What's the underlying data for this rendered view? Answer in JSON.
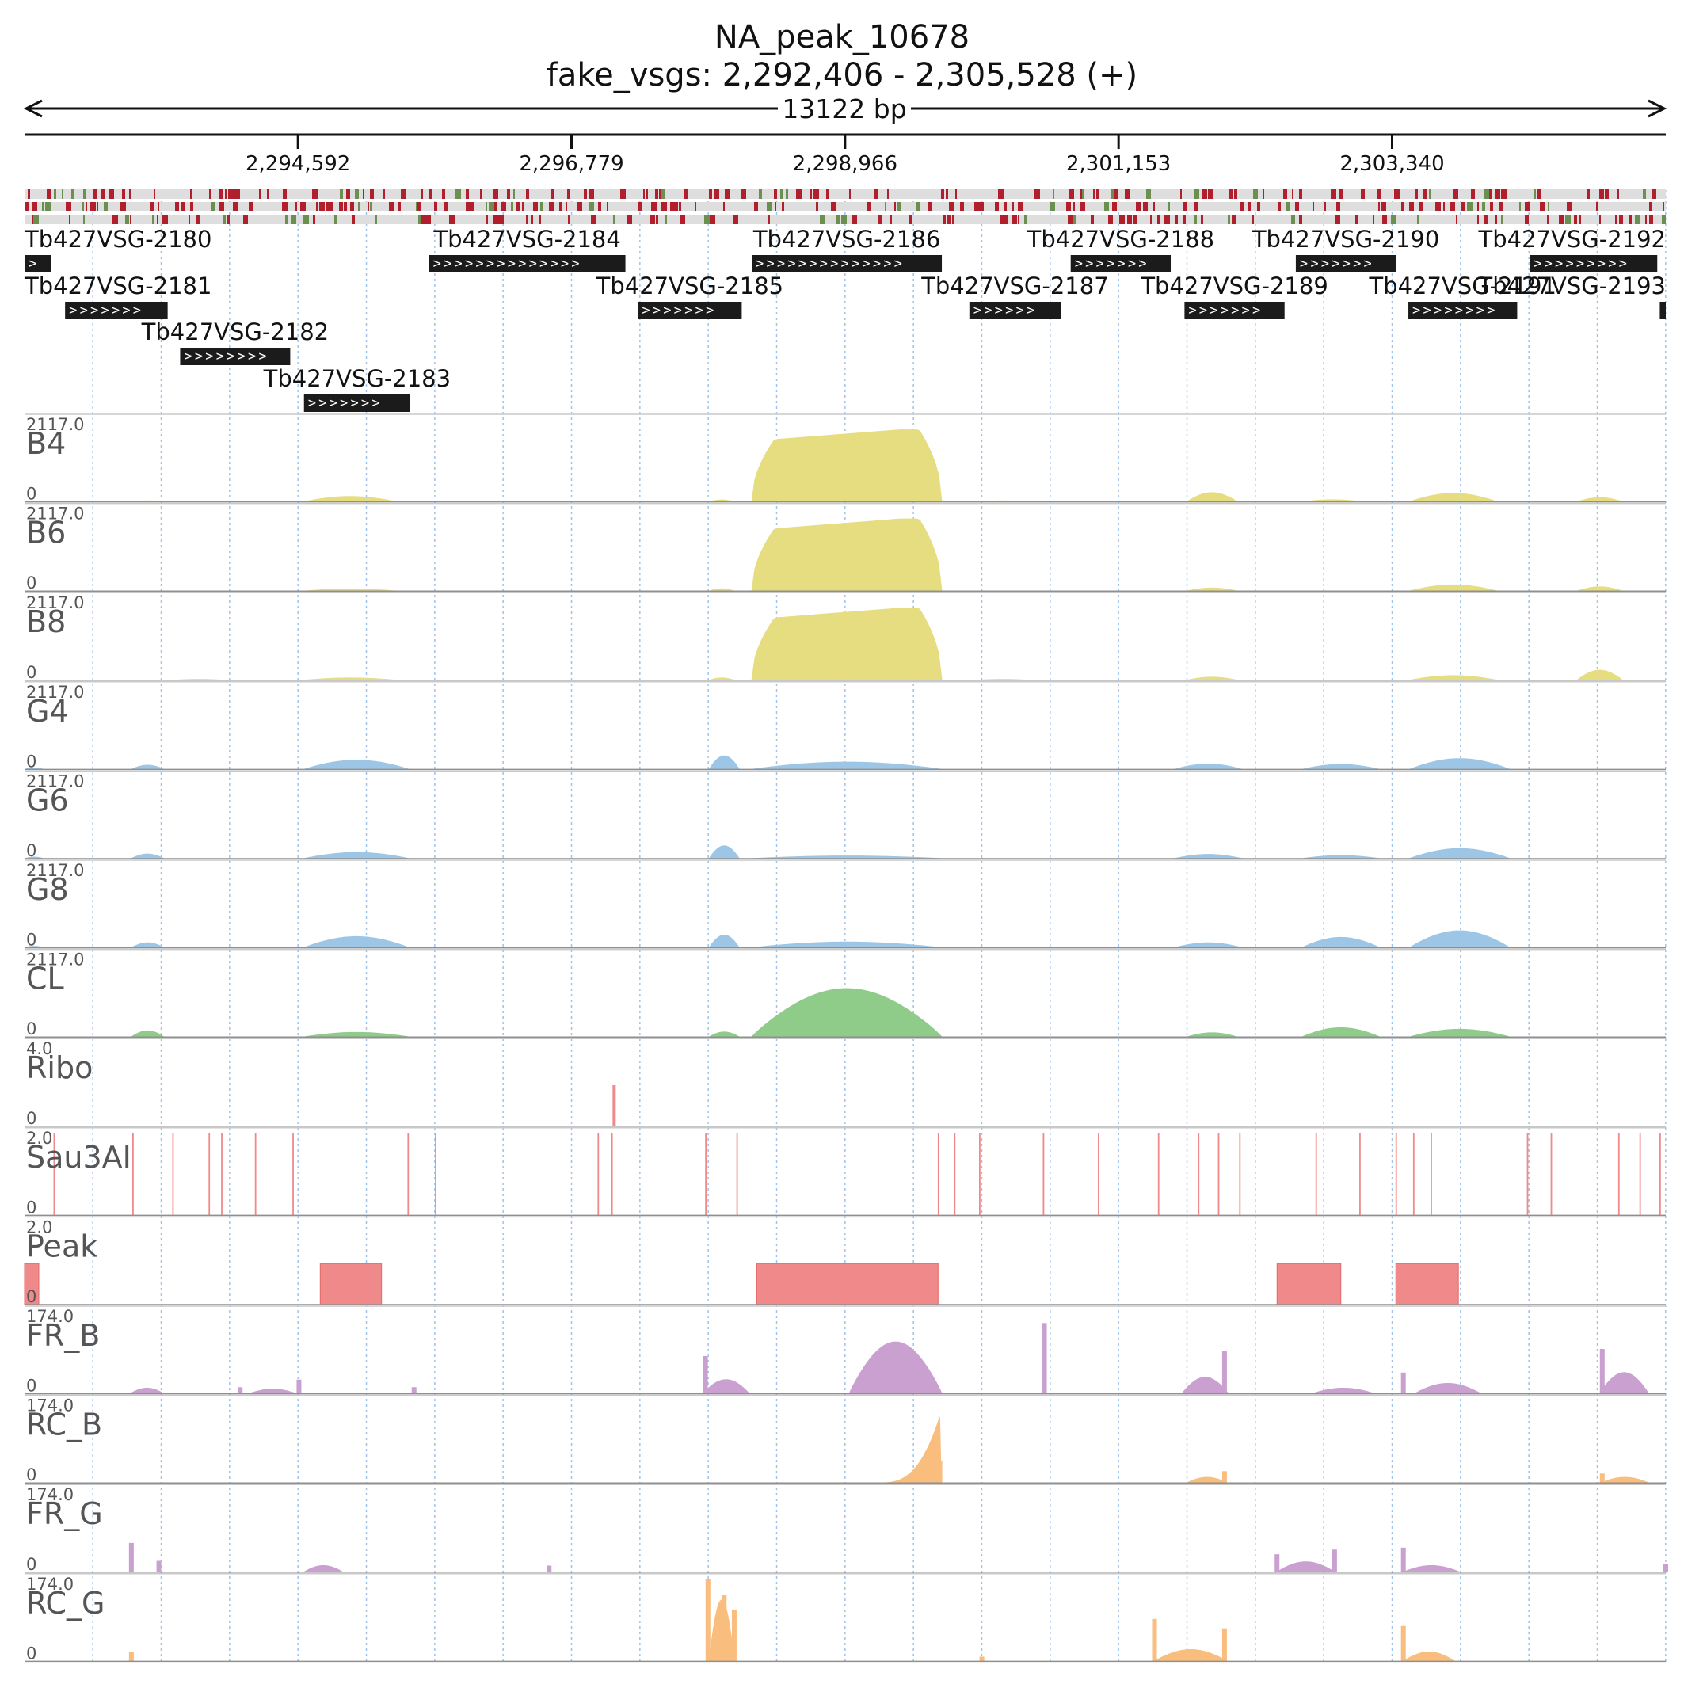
{
  "chart_data": {
    "type": "area",
    "title": "NA_peak_10678",
    "subtitle": "fake_vsgs: 2,292,406 - 2,305,528 (+)",
    "span_label": "13122 bp",
    "region": {
      "chrom": "fake_vsgs",
      "start": 2292406,
      "end": 2305528,
      "strand": "+"
    },
    "x_ticks": [
      {
        "value": 2294592,
        "label": "2,294,592"
      },
      {
        "value": 2296779,
        "label": "2,296,779"
      },
      {
        "value": 2298966,
        "label": "2,298,966"
      },
      {
        "value": 2301153,
        "label": "2,301,153"
      },
      {
        "value": 2303340,
        "label": "2,303,340"
      }
    ],
    "genes": [
      {
        "name": "Tb427VSG-2180",
        "start": 2292406,
        "end": 2292620,
        "row": 0
      },
      {
        "name": "Tb427VSG-2181",
        "start": 2292730,
        "end": 2293550,
        "row": 1
      },
      {
        "name": "Tb427VSG-2182",
        "start": 2293650,
        "end": 2294530,
        "row": 2
      },
      {
        "name": "Tb427VSG-2183",
        "start": 2294640,
        "end": 2295490,
        "row": 3
      },
      {
        "name": "Tb427VSG-2184",
        "start": 2295640,
        "end": 2297210,
        "row": 0
      },
      {
        "name": "Tb427VSG-2185",
        "start": 2297310,
        "end": 2298140,
        "row": 1
      },
      {
        "name": "Tb427VSG-2186",
        "start": 2298220,
        "end": 2299740,
        "row": 0
      },
      {
        "name": "Tb427VSG-2187",
        "start": 2299960,
        "end": 2300690,
        "row": 1
      },
      {
        "name": "Tb427VSG-2188",
        "start": 2300770,
        "end": 2301570,
        "row": 0
      },
      {
        "name": "Tb427VSG-2189",
        "start": 2301680,
        "end": 2302480,
        "row": 1
      },
      {
        "name": "Tb427VSG-2190",
        "start": 2302570,
        "end": 2303370,
        "row": 0
      },
      {
        "name": "Tb427VSG-2191",
        "start": 2303470,
        "end": 2304340,
        "row": 1
      },
      {
        "name": "Tb427VSG-2192",
        "start": 2304440,
        "end": 2305460,
        "row": 0
      },
      {
        "name": "Tb427VSG-2193",
        "start": 2305480,
        "end": 2305528,
        "row": 1
      }
    ],
    "tracks": [
      {
        "name": "B4",
        "max": 2117.0,
        "max_label": "2117.0",
        "min_label": "0",
        "color": "#e5dd7f",
        "segments": [
          {
            "start": 2293280,
            "end": 2293520,
            "peak": 25,
            "shape": "hump"
          },
          {
            "start": 2294640,
            "end": 2295380,
            "peak": 140,
            "shape": "hump"
          },
          {
            "start": 2297880,
            "end": 2298080,
            "peak": 50,
            "shape": "hump"
          },
          {
            "start": 2298220,
            "end": 2299740,
            "peak": 1860,
            "shape": "plateau",
            "base": 1560
          },
          {
            "start": 2300020,
            "end": 2300440,
            "peak": 25,
            "shape": "hump"
          },
          {
            "start": 2301700,
            "end": 2302100,
            "peak": 240,
            "shape": "hump"
          },
          {
            "start": 2302630,
            "end": 2303100,
            "peak": 55,
            "shape": "hump"
          },
          {
            "start": 2303480,
            "end": 2304180,
            "peak": 220,
            "shape": "hump"
          },
          {
            "start": 2304820,
            "end": 2305180,
            "peak": 110,
            "shape": "hump"
          }
        ]
      },
      {
        "name": "B6",
        "max": 2117.0,
        "max_label": "2117.0",
        "min_label": "0",
        "color": "#e5dd7f",
        "segments": [
          {
            "start": 2294640,
            "end": 2295380,
            "peak": 55,
            "shape": "hump"
          },
          {
            "start": 2297880,
            "end": 2298080,
            "peak": 60,
            "shape": "hump"
          },
          {
            "start": 2298220,
            "end": 2299740,
            "peak": 1860,
            "shape": "plateau",
            "base": 1560
          },
          {
            "start": 2301700,
            "end": 2302100,
            "peak": 80,
            "shape": "hump"
          },
          {
            "start": 2303480,
            "end": 2304180,
            "peak": 160,
            "shape": "hump"
          },
          {
            "start": 2304820,
            "end": 2305180,
            "peak": 110,
            "shape": "hump"
          }
        ]
      },
      {
        "name": "B8",
        "max": 2117.0,
        "max_label": "2117.0",
        "min_label": "0",
        "color": "#e5dd7f",
        "segments": [
          {
            "start": 2293600,
            "end": 2294000,
            "peak": 25,
            "shape": "hump"
          },
          {
            "start": 2294640,
            "end": 2295380,
            "peak": 60,
            "shape": "hump"
          },
          {
            "start": 2297880,
            "end": 2298080,
            "peak": 60,
            "shape": "hump"
          },
          {
            "start": 2298220,
            "end": 2299740,
            "peak": 1860,
            "shape": "plateau",
            "base": 1560
          },
          {
            "start": 2300020,
            "end": 2300440,
            "peak": 25,
            "shape": "hump"
          },
          {
            "start": 2301700,
            "end": 2302100,
            "peak": 80,
            "shape": "hump"
          },
          {
            "start": 2303480,
            "end": 2304180,
            "peak": 120,
            "shape": "hump"
          },
          {
            "start": 2304820,
            "end": 2305180,
            "peak": 260,
            "shape": "hump"
          }
        ]
      },
      {
        "name": "G4",
        "max": 2117.0,
        "max_label": "2117.0",
        "min_label": "0",
        "color": "#9dc6e6",
        "segments": [
          {
            "start": 2292406,
            "end": 2292560,
            "peak": 40,
            "shape": "hump"
          },
          {
            "start": 2293260,
            "end": 2293520,
            "peak": 110,
            "shape": "hump"
          },
          {
            "start": 2294640,
            "end": 2295480,
            "peak": 240,
            "shape": "hump"
          },
          {
            "start": 2297880,
            "end": 2298120,
            "peak": 350,
            "shape": "hump"
          },
          {
            "start": 2298220,
            "end": 2299740,
            "peak": 190,
            "shape": "hump"
          },
          {
            "start": 2301600,
            "end": 2302140,
            "peak": 140,
            "shape": "hump"
          },
          {
            "start": 2302620,
            "end": 2303240,
            "peak": 130,
            "shape": "hump"
          },
          {
            "start": 2303480,
            "end": 2304280,
            "peak": 280,
            "shape": "hump"
          }
        ]
      },
      {
        "name": "G6",
        "max": 2117.0,
        "max_label": "2117.0",
        "min_label": "0",
        "color": "#9dc6e6",
        "segments": [
          {
            "start": 2292406,
            "end": 2292560,
            "peak": 40,
            "shape": "hump"
          },
          {
            "start": 2293260,
            "end": 2293520,
            "peak": 120,
            "shape": "hump"
          },
          {
            "start": 2294640,
            "end": 2295480,
            "peak": 160,
            "shape": "hump"
          },
          {
            "start": 2297880,
            "end": 2298120,
            "peak": 330,
            "shape": "hump"
          },
          {
            "start": 2298220,
            "end": 2299740,
            "peak": 70,
            "shape": "hump"
          },
          {
            "start": 2301600,
            "end": 2302140,
            "peak": 110,
            "shape": "hump"
          },
          {
            "start": 2302620,
            "end": 2303240,
            "peak": 80,
            "shape": "hump"
          },
          {
            "start": 2303480,
            "end": 2304280,
            "peak": 260,
            "shape": "hump"
          }
        ]
      },
      {
        "name": "G8",
        "max": 2117.0,
        "max_label": "2117.0",
        "min_label": "0",
        "color": "#9dc6e6",
        "segments": [
          {
            "start": 2292406,
            "end": 2292560,
            "peak": 40,
            "shape": "hump"
          },
          {
            "start": 2293260,
            "end": 2293520,
            "peak": 130,
            "shape": "hump"
          },
          {
            "start": 2294640,
            "end": 2295480,
            "peak": 290,
            "shape": "hump"
          },
          {
            "start": 2297880,
            "end": 2298120,
            "peak": 330,
            "shape": "hump"
          },
          {
            "start": 2298220,
            "end": 2299740,
            "peak": 150,
            "shape": "hump"
          },
          {
            "start": 2301600,
            "end": 2302140,
            "peak": 130,
            "shape": "hump"
          },
          {
            "start": 2302620,
            "end": 2303240,
            "peak": 270,
            "shape": "hump"
          },
          {
            "start": 2303480,
            "end": 2304280,
            "peak": 440,
            "shape": "hump"
          }
        ]
      },
      {
        "name": "CL",
        "max": 2117.0,
        "max_label": "2117.0",
        "min_label": "0",
        "color": "#8fcc8a",
        "segments": [
          {
            "start": 2293260,
            "end": 2293520,
            "peak": 160,
            "shape": "hump"
          },
          {
            "start": 2294640,
            "end": 2295480,
            "peak": 120,
            "shape": "hump"
          },
          {
            "start": 2297880,
            "end": 2298120,
            "peak": 130,
            "shape": "hump"
          },
          {
            "start": 2298220,
            "end": 2299740,
            "peak": 1250,
            "shape": "hump"
          },
          {
            "start": 2301700,
            "end": 2302100,
            "peak": 110,
            "shape": "hump"
          },
          {
            "start": 2302620,
            "end": 2303240,
            "peak": 240,
            "shape": "hump"
          },
          {
            "start": 2303480,
            "end": 2304280,
            "peak": 200,
            "shape": "hump"
          }
        ]
      },
      {
        "name": "Ribo",
        "max": 4.0,
        "max_label": "4.0",
        "min_label": "0",
        "color": "#f08a8a",
        "bars": [
          {
            "pos": 2297120,
            "value": 2.0
          }
        ]
      },
      {
        "name": "Sau3AI",
        "max": 2.0,
        "max_label": "2.0",
        "min_label": "0",
        "color": "#f08a8a",
        "bars": [
          {
            "pos": 2292650,
            "value": 2
          },
          {
            "pos": 2293280,
            "value": 2
          },
          {
            "pos": 2293600,
            "value": 2
          },
          {
            "pos": 2293890,
            "value": 2
          },
          {
            "pos": 2293990,
            "value": 2
          },
          {
            "pos": 2294260,
            "value": 2
          },
          {
            "pos": 2294560,
            "value": 2
          },
          {
            "pos": 2295480,
            "value": 2
          },
          {
            "pos": 2295700,
            "value": 2
          },
          {
            "pos": 2297000,
            "value": 2
          },
          {
            "pos": 2297110,
            "value": 2
          },
          {
            "pos": 2297860,
            "value": 2
          },
          {
            "pos": 2298110,
            "value": 2
          },
          {
            "pos": 2299720,
            "value": 2
          },
          {
            "pos": 2299850,
            "value": 2
          },
          {
            "pos": 2300050,
            "value": 2
          },
          {
            "pos": 2300560,
            "value": 2
          },
          {
            "pos": 2301000,
            "value": 2
          },
          {
            "pos": 2301480,
            "value": 2
          },
          {
            "pos": 2301800,
            "value": 2
          },
          {
            "pos": 2301960,
            "value": 2
          },
          {
            "pos": 2302130,
            "value": 2
          },
          {
            "pos": 2302740,
            "value": 2
          },
          {
            "pos": 2303090,
            "value": 2
          },
          {
            "pos": 2303380,
            "value": 2
          },
          {
            "pos": 2303520,
            "value": 2
          },
          {
            "pos": 2303660,
            "value": 2
          },
          {
            "pos": 2304430,
            "value": 2
          },
          {
            "pos": 2304620,
            "value": 2
          },
          {
            "pos": 2305160,
            "value": 2
          },
          {
            "pos": 2305330,
            "value": 2
          },
          {
            "pos": 2305490,
            "value": 2
          }
        ]
      },
      {
        "name": "Peak",
        "max": 2.0,
        "max_label": "2.0",
        "min_label": "0",
        "color": "#f08a8a",
        "blocks": [
          {
            "start": 2292406,
            "end": 2292520,
            "value": 1
          },
          {
            "start": 2294770,
            "end": 2295260,
            "value": 1
          },
          {
            "start": 2298260,
            "end": 2299710,
            "value": 1
          },
          {
            "start": 2302420,
            "end": 2302930,
            "value": 1
          },
          {
            "start": 2303370,
            "end": 2303870,
            "value": 1
          }
        ]
      },
      {
        "name": "FR_B",
        "max": 174.0,
        "max_label": "174.0",
        "min_label": "0",
        "color": "#c9a0cf",
        "segments": [
          {
            "start": 2293250,
            "end": 2293520,
            "peak": 12,
            "shape": "hump"
          },
          {
            "start": 2294200,
            "end": 2294580,
            "peak": 10,
            "shape": "hump"
          },
          {
            "start": 2297830,
            "end": 2298200,
            "peak": 30,
            "shape": "hump"
          },
          {
            "start": 2299000,
            "end": 2299740,
            "peak": 110,
            "shape": "hump"
          },
          {
            "start": 2301660,
            "end": 2302030,
            "peak": 35,
            "shape": "hump"
          },
          {
            "start": 2302700,
            "end": 2303200,
            "peak": 12,
            "shape": "hump"
          },
          {
            "start": 2303520,
            "end": 2304050,
            "peak": 22,
            "shape": "hump"
          },
          {
            "start": 2305000,
            "end": 2305390,
            "peak": 45,
            "shape": "hump"
          }
        ],
        "spikes": [
          {
            "pos": 2294130,
            "value": 14
          },
          {
            "pos": 2294600,
            "value": 30
          },
          {
            "pos": 2295520,
            "value": 14
          },
          {
            "pos": 2297850,
            "value": 80
          },
          {
            "pos": 2300560,
            "value": 150
          },
          {
            "pos": 2302000,
            "value": 90
          },
          {
            "pos": 2303430,
            "value": 45
          },
          {
            "pos": 2305020,
            "value": 95
          }
        ]
      },
      {
        "name": "RC_B",
        "max": 174.0,
        "max_label": "174.0",
        "min_label": "0",
        "color": "#f9bd7e",
        "segments": [
          {
            "start": 2299220,
            "end": 2299740,
            "peak": 155,
            "shape": "ramp"
          },
          {
            "start": 2301700,
            "end": 2302020,
            "peak": 12,
            "shape": "hump"
          },
          {
            "start": 2305010,
            "end": 2305390,
            "peak": 12,
            "shape": "hump"
          }
        ],
        "spikes": [
          {
            "pos": 2302000,
            "value": 25
          },
          {
            "pos": 2305020,
            "value": 20
          }
        ]
      },
      {
        "name": "FR_G",
        "max": 174.0,
        "max_label": "174.0",
        "min_label": "0",
        "color": "#c9a0cf",
        "segments": [
          {
            "start": 2294640,
            "end": 2294950,
            "peak": 14,
            "shape": "hump"
          },
          {
            "start": 2302420,
            "end": 2302880,
            "peak": 22,
            "shape": "hump"
          },
          {
            "start": 2303430,
            "end": 2303880,
            "peak": 14,
            "shape": "hump"
          }
        ],
        "spikes": [
          {
            "pos": 2293260,
            "value": 62
          },
          {
            "pos": 2293480,
            "value": 24
          },
          {
            "pos": 2296600,
            "value": 14
          },
          {
            "pos": 2302420,
            "value": 38
          },
          {
            "pos": 2302880,
            "value": 48
          },
          {
            "pos": 2303430,
            "value": 52
          },
          {
            "pos": 2305528,
            "value": 18
          }
        ]
      },
      {
        "name": "RC_G",
        "max": 174.0,
        "max_label": "174.0",
        "min_label": "0",
        "color": "#f9bd7e",
        "segments": [
          {
            "start": 2297880,
            "end": 2298080,
            "peak": 130,
            "shape": "hump"
          },
          {
            "start": 2301440,
            "end": 2302020,
            "peak": 25,
            "shape": "hump"
          },
          {
            "start": 2303430,
            "end": 2303840,
            "peak": 20,
            "shape": "hump"
          }
        ],
        "spikes": [
          {
            "pos": 2293260,
            "value": 20
          },
          {
            "pos": 2297870,
            "value": 174
          },
          {
            "pos": 2298000,
            "value": 140
          },
          {
            "pos": 2298080,
            "value": 110
          },
          {
            "pos": 2300060,
            "value": 10
          },
          {
            "pos": 2301440,
            "value": 90
          },
          {
            "pos": 2302000,
            "value": 70
          },
          {
            "pos": 2303430,
            "value": 75
          }
        ]
      }
    ],
    "mapped_positions": {
      "colors": {
        "conserved": "#b21f2c",
        "variant": "#6b8f4e",
        "background": "#dedede"
      },
      "rows": 3
    }
  }
}
